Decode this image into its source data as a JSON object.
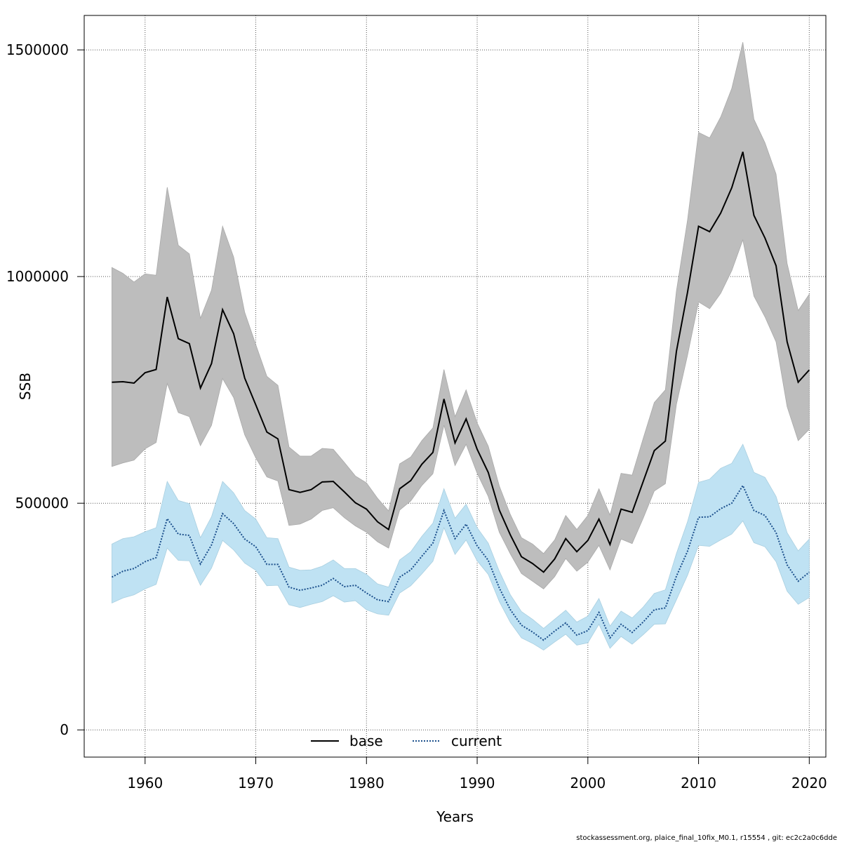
{
  "chart_data": {
    "type": "line",
    "xlabel": "Years",
    "ylabel": "SSB",
    "xlim": [
      1954.5,
      2021.5
    ],
    "ylim": [
      -60000,
      1576000
    ],
    "xticks": [
      1960,
      1970,
      1980,
      1990,
      2000,
      2010,
      2020
    ],
    "yticks": [
      0,
      500000,
      1000000,
      1500000
    ],
    "xtick_labels": [
      "1960",
      "1970",
      "1980",
      "1990",
      "2000",
      "2010",
      "2020"
    ],
    "ytick_labels": [
      "0",
      "500000",
      "1000000",
      "1500000"
    ],
    "grid": true,
    "legend_position": "bottom-center",
    "x": [
      1957,
      1958,
      1959,
      1960,
      1961,
      1962,
      1963,
      1964,
      1965,
      1966,
      1967,
      1968,
      1969,
      1970,
      1971,
      1972,
      1973,
      1974,
      1975,
      1976,
      1977,
      1978,
      1979,
      1980,
      1981,
      1982,
      1983,
      1984,
      1985,
      1986,
      1987,
      1988,
      1989,
      1990,
      1991,
      1992,
      1993,
      1994,
      1995,
      1996,
      1997,
      1998,
      1999,
      2000,
      2001,
      2002,
      2003,
      2004,
      2005,
      2006,
      2007,
      2008,
      2009,
      2010,
      2011,
      2012,
      2013,
      2014,
      2015,
      2016,
      2017,
      2018,
      2019,
      2020
    ],
    "series": [
      {
        "name": "base",
        "color": "#000000",
        "band_color": "#bdbdbd",
        "line_style": "solid",
        "values": [
          767000,
          768000,
          765000,
          788000,
          795000,
          955000,
          863000,
          852000,
          754000,
          808000,
          927000,
          874000,
          776000,
          717000,
          657000,
          642000,
          530000,
          524000,
          530000,
          547000,
          548000,
          525000,
          501000,
          487000,
          459000,
          442000,
          532000,
          550000,
          586000,
          612000,
          730000,
          633000,
          686000,
          619000,
          568000,
          485000,
          430000,
          382000,
          367000,
          348000,
          377000,
          422000,
          393000,
          418000,
          465000,
          409000,
          487000,
          480000,
          548000,
          616000,
          637000,
          835000,
          965000,
          1111000,
          1099000,
          1140000,
          1196000,
          1275000,
          1135000,
          1085000,
          1024000,
          856000,
          767000,
          794000
        ],
        "upper": [
          1020000,
          1007000,
          988000,
          1006000,
          1003000,
          1197000,
          1069000,
          1050000,
          908000,
          970000,
          1111000,
          1043000,
          921000,
          850000,
          780000,
          760000,
          624000,
          604000,
          604000,
          621000,
          619000,
          590000,
          560000,
          545000,
          511000,
          483000,
          587000,
          602000,
          638000,
          666000,
          795000,
          691000,
          750000,
          677000,
          626000,
          538000,
          475000,
          424000,
          410000,
          389000,
          419000,
          473000,
          442000,
          473000,
          532000,
          474000,
          566000,
          562000,
          643000,
          722000,
          750000,
          968000,
          1124000,
          1318000,
          1306000,
          1352000,
          1415000,
          1517000,
          1347000,
          1295000,
          1226000,
          1029000,
          925000,
          961000
        ],
        "lower": [
          581000,
          589000,
          595000,
          620000,
          634000,
          764000,
          700000,
          691000,
          627000,
          672000,
          775000,
          733000,
          651000,
          600000,
          558000,
          549000,
          451000,
          454000,
          465000,
          484000,
          490000,
          468000,
          450000,
          436000,
          415000,
          401000,
          485000,
          505000,
          539000,
          565000,
          672000,
          583000,
          630000,
          566000,
          515000,
          436000,
          388000,
          345000,
          328000,
          311000,
          338000,
          378000,
          350000,
          370000,
          407000,
          353000,
          421000,
          411000,
          467000,
          527000,
          543000,
          718000,
          826000,
          944000,
          929000,
          963000,
          1013000,
          1081000,
          957000,
          911000,
          856000,
          713000,
          638000,
          663000
        ]
      },
      {
        "name": "current",
        "color": "#1b4f8c",
        "band_color": "#bfe2f3",
        "line_style": "dotted",
        "values": [
          337000,
          350000,
          356000,
          371000,
          380000,
          466000,
          432000,
          429000,
          366000,
          408000,
          477000,
          455000,
          421000,
          404000,
          365000,
          365000,
          315000,
          308000,
          313000,
          319000,
          334000,
          316000,
          319000,
          302000,
          287000,
          283000,
          337000,
          353000,
          383000,
          412000,
          484000,
          422000,
          454000,
          406000,
          374000,
          313000,
          265000,
          231000,
          216000,
          198000,
          218000,
          236000,
          209000,
          219000,
          259000,
          203000,
          233000,
          215000,
          238000,
          265000,
          269000,
          339000,
          394000,
          469000,
          470000,
          488000,
          500000,
          539000,
          484000,
          473000,
          435000,
          364000,
          328000,
          348000
        ],
        "upper": [
          410000,
          422000,
          426000,
          437000,
          446000,
          548000,
          506000,
          499000,
          424000,
          470000,
          548000,
          523000,
          484000,
          465000,
          424000,
          422000,
          359000,
          352000,
          353000,
          361000,
          375000,
          356000,
          356000,
          343000,
          322000,
          315000,
          375000,
          393000,
          427000,
          456000,
          532000,
          467000,
          498000,
          446000,
          412000,
          350000,
          298000,
          261000,
          244000,
          224000,
          244000,
          264000,
          238000,
          251000,
          290000,
          229000,
          262000,
          247000,
          271000,
          301000,
          309000,
          389000,
          459000,
          546000,
          553000,
          577000,
          588000,
          630000,
          568000,
          557000,
          515000,
          435000,
          395000,
          421000
        ],
        "lower": [
          280000,
          291000,
          298000,
          311000,
          321000,
          401000,
          374000,
          373000,
          319000,
          357000,
          418000,
          397000,
          368000,
          352000,
          318000,
          319000,
          276000,
          270000,
          277000,
          283000,
          296000,
          282000,
          285000,
          265000,
          256000,
          253000,
          302000,
          318000,
          344000,
          372000,
          446000,
          387000,
          419000,
          373000,
          343000,
          283000,
          237000,
          203000,
          191000,
          176000,
          194000,
          211000,
          187000,
          192000,
          233000,
          180000,
          206000,
          189000,
          210000,
          233000,
          234000,
          287000,
          341000,
          407000,
          405000,
          419000,
          432000,
          461000,
          413000,
          404000,
          371000,
          306000,
          277000,
          292000
        ]
      }
    ]
  },
  "footer": "stockassessment.org, plaice_final_10fix_M0.1, r15554 , git: ec2c2a0c6dde"
}
